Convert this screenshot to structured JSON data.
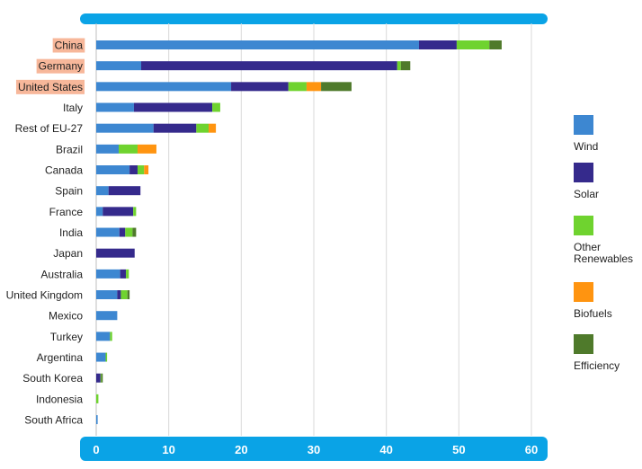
{
  "chart_data": {
    "type": "bar",
    "orientation": "horizontal",
    "stacked": true,
    "title": "",
    "xlabel": "",
    "ylabel": "",
    "xlim": [
      0,
      60
    ],
    "xticks": [
      "0",
      "10",
      "20",
      "30",
      "40",
      "50",
      "60"
    ],
    "grid": true,
    "legend_position": "right",
    "categories": [
      "China",
      "Germany",
      "United States",
      "Italy",
      "Rest of EU-27",
      "Brazil",
      "Canada",
      "Spain",
      "France",
      "India",
      "Japan",
      "Australia",
      "United Kingdom",
      "Mexico",
      "Turkey",
      "Argentina",
      "South Korea",
      "Indonesia",
      "South Africa"
    ],
    "highlighted_categories": [
      "China",
      "Germany",
      "United States"
    ],
    "highlight_color": "#f7b79a",
    "series": [
      {
        "name": "Wind",
        "color": "#3d87d1",
        "values": [
          44.5,
          6.2,
          18.6,
          5.2,
          7.9,
          3.1,
          4.6,
          1.7,
          0.9,
          3.2,
          0,
          3.3,
          2.9,
          2.9,
          1.9,
          1.3,
          0,
          0,
          0.2
        ]
      },
      {
        "name": "Solar",
        "color": "#352a8c",
        "values": [
          5.2,
          35.3,
          7.9,
          10.8,
          5.9,
          0,
          1.1,
          4.4,
          4.2,
          0.8,
          5.3,
          0.8,
          0.5,
          0,
          0,
          0,
          0.6,
          0,
          0
        ]
      },
      {
        "name": "Other Renewables",
        "color": "#6fd32f",
        "values": [
          4.5,
          0.5,
          2.5,
          1.1,
          1.7,
          2.6,
          0.9,
          0,
          0.4,
          1.0,
          0,
          0.4,
          0.9,
          0,
          0.3,
          0.2,
          0.1,
          0.3,
          0
        ]
      },
      {
        "name": "Biofuels",
        "color": "#ff9410",
        "values": [
          0,
          0,
          2.0,
          0,
          1.0,
          2.6,
          0.6,
          0,
          0,
          0,
          0,
          0,
          0,
          0,
          0,
          0,
          0,
          0,
          0
        ]
      },
      {
        "name": "Efficiency",
        "color": "#4f7a2b",
        "values": [
          1.7,
          1.3,
          4.2,
          0,
          0,
          0,
          0,
          0,
          0,
          0.5,
          0,
          0,
          0.3,
          0,
          0,
          0,
          0.2,
          0,
          0
        ]
      }
    ]
  },
  "legend": {
    "items": [
      {
        "label": "Wind",
        "color": "#3d87d1"
      },
      {
        "label": "Solar",
        "color": "#352a8c"
      },
      {
        "label": "Other Renewables",
        "color": "#6fd32f"
      },
      {
        "label": "Biofuels",
        "color": "#ff9410"
      },
      {
        "label": "Efficiency",
        "color": "#4f7a2b"
      }
    ]
  },
  "colors": {
    "axis_band": "#0aa3e6",
    "gridline": "#d9d9d9",
    "label_text": "#222222"
  }
}
